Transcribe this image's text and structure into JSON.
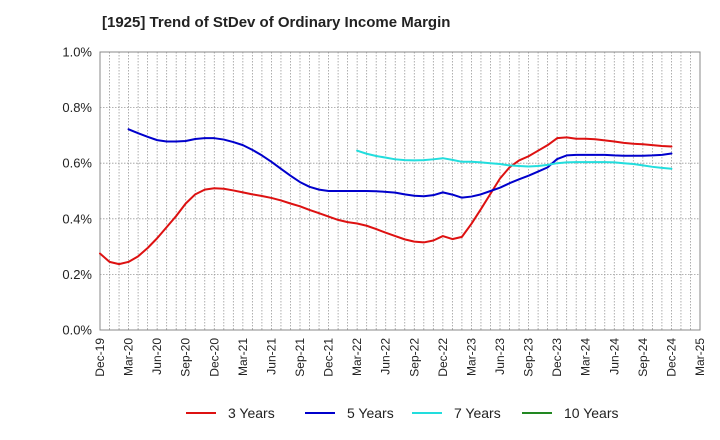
{
  "chart_data": {
    "type": "line",
    "title": "[1925]  Trend of StDev of Ordinary Income Margin",
    "xlabel": "",
    "ylabel": "",
    "x_tick_labels": [
      "Dec-19",
      "Mar-20",
      "Jun-20",
      "Sep-20",
      "Dec-20",
      "Mar-21",
      "Jun-21",
      "Sep-21",
      "Dec-21",
      "Mar-22",
      "Jun-22",
      "Sep-22",
      "Dec-22",
      "Mar-23",
      "Jun-23",
      "Sep-23",
      "Dec-23",
      "Mar-24",
      "Jun-24",
      "Sep-24",
      "Dec-24",
      "Mar-25"
    ],
    "y_tick_labels": [
      "0.0%",
      "0.2%",
      "0.4%",
      "0.6%",
      "0.8%",
      "1.0%"
    ],
    "ylim": [
      0.0,
      1.0
    ],
    "y_unit": "%",
    "grid": "dotted, vertical lines monthly",
    "legend_position": "bottom",
    "series": [
      {
        "name": "3 Years",
        "color": "#dd1111",
        "points": [
          [
            "Dec-19",
            0.275
          ],
          [
            "Jan-20",
            0.245
          ],
          [
            "Feb-20",
            0.237
          ],
          [
            "Mar-20",
            0.245
          ],
          [
            "Apr-20",
            0.265
          ],
          [
            "May-20",
            0.295
          ],
          [
            "Jun-20",
            0.33
          ],
          [
            "Jul-20",
            0.37
          ],
          [
            "Aug-20",
            0.41
          ],
          [
            "Sep-20",
            0.455
          ],
          [
            "Oct-20",
            0.488
          ],
          [
            "Nov-20",
            0.505
          ],
          [
            "Dec-20",
            0.51
          ],
          [
            "Jan-21",
            0.508
          ],
          [
            "Feb-21",
            0.502
          ],
          [
            "Mar-21",
            0.495
          ],
          [
            "Apr-21",
            0.488
          ],
          [
            "May-21",
            0.482
          ],
          [
            "Jun-21",
            0.475
          ],
          [
            "Jul-21",
            0.466
          ],
          [
            "Aug-21",
            0.455
          ],
          [
            "Sep-21",
            0.445
          ],
          [
            "Oct-21",
            0.432
          ],
          [
            "Nov-21",
            0.42
          ],
          [
            "Dec-21",
            0.408
          ],
          [
            "Jan-22",
            0.396
          ],
          [
            "Feb-22",
            0.388
          ],
          [
            "Mar-22",
            0.383
          ],
          [
            "Apr-22",
            0.375
          ],
          [
            "May-22",
            0.363
          ],
          [
            "Jun-22",
            0.35
          ],
          [
            "Jul-22",
            0.338
          ],
          [
            "Aug-22",
            0.326
          ],
          [
            "Sep-22",
            0.318
          ],
          [
            "Oct-22",
            0.315
          ],
          [
            "Nov-22",
            0.322
          ],
          [
            "Dec-22",
            0.338
          ],
          [
            "Jan-23",
            0.327
          ],
          [
            "Feb-23",
            0.335
          ],
          [
            "Mar-23",
            0.382
          ],
          [
            "Apr-23",
            0.435
          ],
          [
            "May-23",
            0.49
          ],
          [
            "Jun-23",
            0.545
          ],
          [
            "Jul-23",
            0.585
          ],
          [
            "Aug-23",
            0.61
          ],
          [
            "Sep-23",
            0.625
          ],
          [
            "Oct-23",
            0.645
          ],
          [
            "Nov-23",
            0.665
          ],
          [
            "Dec-23",
            0.69
          ],
          [
            "Jan-24",
            0.693
          ],
          [
            "Feb-24",
            0.688
          ],
          [
            "Mar-24",
            0.688
          ],
          [
            "Apr-24",
            0.686
          ],
          [
            "May-24",
            0.682
          ],
          [
            "Jun-24",
            0.678
          ],
          [
            "Jul-24",
            0.673
          ],
          [
            "Aug-24",
            0.67
          ],
          [
            "Sep-24",
            0.668
          ],
          [
            "Oct-24",
            0.665
          ],
          [
            "Nov-24",
            0.662
          ],
          [
            "Dec-24",
            0.66
          ]
        ]
      },
      {
        "name": "5 Years",
        "color": "#0000cc",
        "points": [
          [
            "Mar-20",
            0.722
          ],
          [
            "Apr-20",
            0.708
          ],
          [
            "May-20",
            0.695
          ],
          [
            "Jun-20",
            0.683
          ],
          [
            "Jul-20",
            0.678
          ],
          [
            "Aug-20",
            0.678
          ],
          [
            "Sep-20",
            0.68
          ],
          [
            "Oct-20",
            0.687
          ],
          [
            "Nov-20",
            0.69
          ],
          [
            "Dec-20",
            0.69
          ],
          [
            "Jan-21",
            0.685
          ],
          [
            "Feb-21",
            0.676
          ],
          [
            "Mar-21",
            0.665
          ],
          [
            "Apr-21",
            0.648
          ],
          [
            "May-21",
            0.628
          ],
          [
            "Jun-21",
            0.605
          ],
          [
            "Jul-21",
            0.58
          ],
          [
            "Aug-21",
            0.555
          ],
          [
            "Sep-21",
            0.532
          ],
          [
            "Oct-21",
            0.515
          ],
          [
            "Nov-21",
            0.505
          ],
          [
            "Dec-21",
            0.5
          ],
          [
            "Jan-22",
            0.5
          ],
          [
            "Feb-22",
            0.5
          ],
          [
            "Mar-22",
            0.5
          ],
          [
            "Apr-22",
            0.5
          ],
          [
            "May-22",
            0.499
          ],
          [
            "Jun-22",
            0.497
          ],
          [
            "Jul-22",
            0.494
          ],
          [
            "Aug-22",
            0.488
          ],
          [
            "Sep-22",
            0.483
          ],
          [
            "Oct-22",
            0.481
          ],
          [
            "Nov-22",
            0.485
          ],
          [
            "Dec-22",
            0.495
          ],
          [
            "Jan-23",
            0.487
          ],
          [
            "Feb-23",
            0.476
          ],
          [
            "Mar-23",
            0.48
          ],
          [
            "Apr-23",
            0.488
          ],
          [
            "May-23",
            0.5
          ],
          [
            "Jun-23",
            0.512
          ],
          [
            "Jul-23",
            0.528
          ],
          [
            "Aug-23",
            0.542
          ],
          [
            "Sep-23",
            0.555
          ],
          [
            "Oct-23",
            0.57
          ],
          [
            "Nov-23",
            0.585
          ],
          [
            "Dec-23",
            0.615
          ],
          [
            "Jan-24",
            0.628
          ],
          [
            "Feb-24",
            0.63
          ],
          [
            "Mar-24",
            0.63
          ],
          [
            "Apr-24",
            0.63
          ],
          [
            "May-24",
            0.63
          ],
          [
            "Jun-24",
            0.628
          ],
          [
            "Jul-24",
            0.627
          ],
          [
            "Aug-24",
            0.627
          ],
          [
            "Sep-24",
            0.627
          ],
          [
            "Oct-24",
            0.628
          ],
          [
            "Nov-24",
            0.63
          ],
          [
            "Dec-24",
            0.635
          ]
        ]
      },
      {
        "name": "7 Years",
        "color": "#22dddd",
        "points": [
          [
            "Mar-22",
            0.645
          ],
          [
            "Apr-22",
            0.634
          ],
          [
            "May-22",
            0.626
          ],
          [
            "Jun-22",
            0.62
          ],
          [
            "Jul-22",
            0.614
          ],
          [
            "Aug-22",
            0.611
          ],
          [
            "Sep-22",
            0.61
          ],
          [
            "Oct-22",
            0.611
          ],
          [
            "Nov-22",
            0.614
          ],
          [
            "Dec-22",
            0.618
          ],
          [
            "Jan-23",
            0.612
          ],
          [
            "Feb-23",
            0.605
          ],
          [
            "Mar-23",
            0.605
          ],
          [
            "Apr-23",
            0.603
          ],
          [
            "May-23",
            0.6
          ],
          [
            "Jun-23",
            0.597
          ],
          [
            "Jul-23",
            0.592
          ],
          [
            "Aug-23",
            0.59
          ],
          [
            "Sep-23",
            0.588
          ],
          [
            "Oct-23",
            0.59
          ],
          [
            "Nov-23",
            0.594
          ],
          [
            "Dec-23",
            0.6
          ],
          [
            "Jan-24",
            0.603
          ],
          [
            "Feb-24",
            0.604
          ],
          [
            "Mar-24",
            0.604
          ],
          [
            "Apr-24",
            0.604
          ],
          [
            "May-24",
            0.604
          ],
          [
            "Jun-24",
            0.603
          ],
          [
            "Jul-24",
            0.6
          ],
          [
            "Aug-24",
            0.597
          ],
          [
            "Sep-24",
            0.592
          ],
          [
            "Oct-24",
            0.587
          ],
          [
            "Nov-24",
            0.583
          ],
          [
            "Dec-24",
            0.58
          ]
        ]
      },
      {
        "name": "10 Years",
        "color": "#228822",
        "points": []
      }
    ]
  }
}
